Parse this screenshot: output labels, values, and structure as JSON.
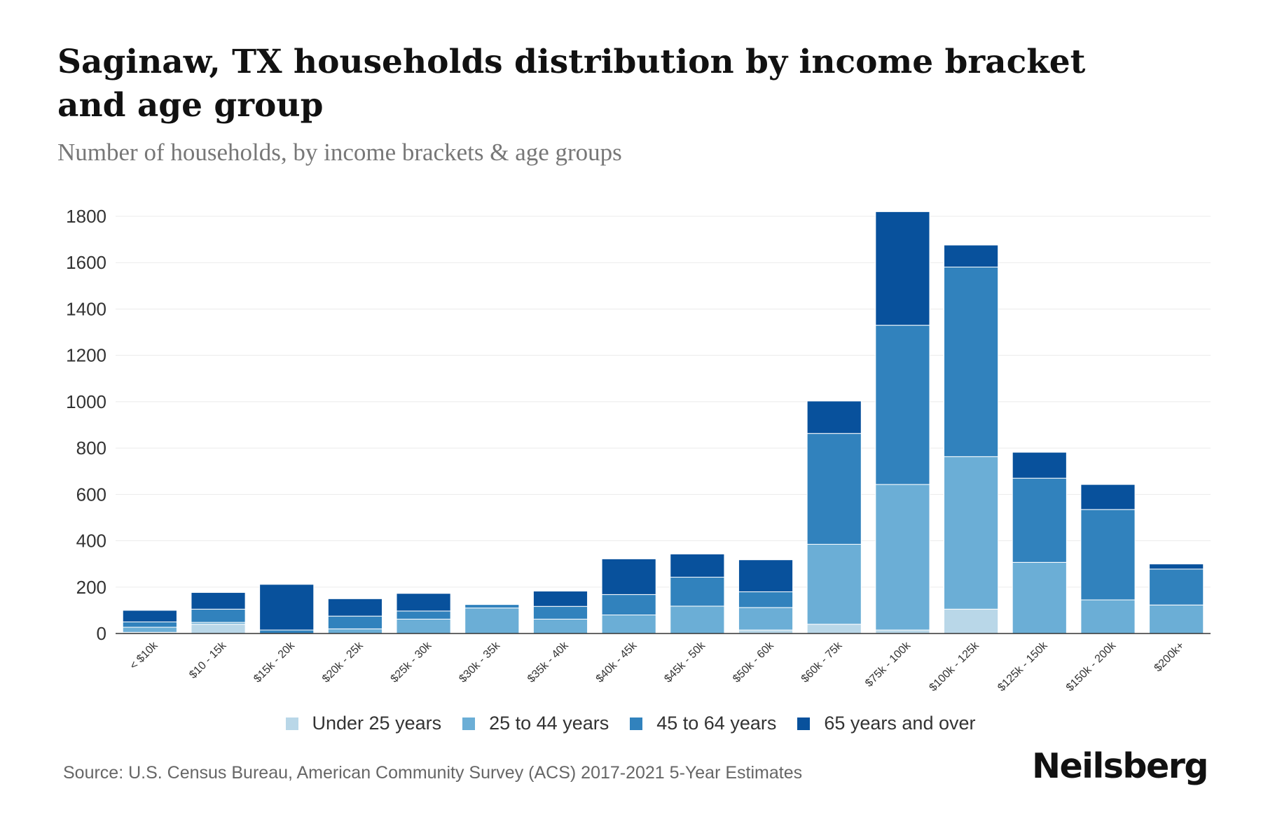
{
  "chart_data": {
    "type": "bar",
    "stacked": true,
    "title": "Saginaw, TX households distribution by income bracket and age group",
    "subtitle": "Number of households, by income brackets & age groups",
    "xlabel": "",
    "ylabel": "",
    "ylim": [
      0,
      1800
    ],
    "yticks": [
      0,
      200,
      400,
      600,
      800,
      1000,
      1200,
      1400,
      1600,
      1800
    ],
    "grid": true,
    "legend_position": "bottom",
    "categories": [
      "< $10k",
      "$10 - 15k",
      "$15k - 20k",
      "$20k - 25k",
      "$25k - 30k",
      "$30k - 35k",
      "$35k - 40k",
      "$40k - 45k",
      "$45k - 50k",
      "$50k - 60k",
      "$60k - 75k",
      "$75k - 100k",
      "$100k - 125k",
      "$125k - 150k",
      "$150k - 200k",
      "$200k+"
    ],
    "series": [
      {
        "name": "Under 25 years",
        "color": "#b9d7e8",
        "values": [
          5,
          40,
          0,
          0,
          0,
          0,
          0,
          0,
          0,
          15,
          40,
          15,
          105,
          0,
          0,
          0
        ]
      },
      {
        "name": "25 to 44 years",
        "color": "#6baed6",
        "values": [
          22,
          8,
          0,
          20,
          62,
          110,
          62,
          80,
          118,
          97,
          345,
          628,
          658,
          307,
          145,
          123
        ]
      },
      {
        "name": "45 to 64 years",
        "color": "#3182bd",
        "values": [
          23,
          57,
          15,
          55,
          35,
          15,
          55,
          88,
          125,
          68,
          478,
          687,
          818,
          363,
          390,
          155
        ]
      },
      {
        "name": "65 years and over",
        "color": "#08519c",
        "values": [
          50,
          72,
          197,
          75,
          76,
          0,
          66,
          154,
          100,
          138,
          140,
          490,
          95,
          112,
          108,
          22
        ]
      }
    ]
  },
  "source": "Source: U.S. Census Bureau, American Community Survey (ACS) 2017-2021 5-Year Estimates",
  "brand": "Neilsberg"
}
